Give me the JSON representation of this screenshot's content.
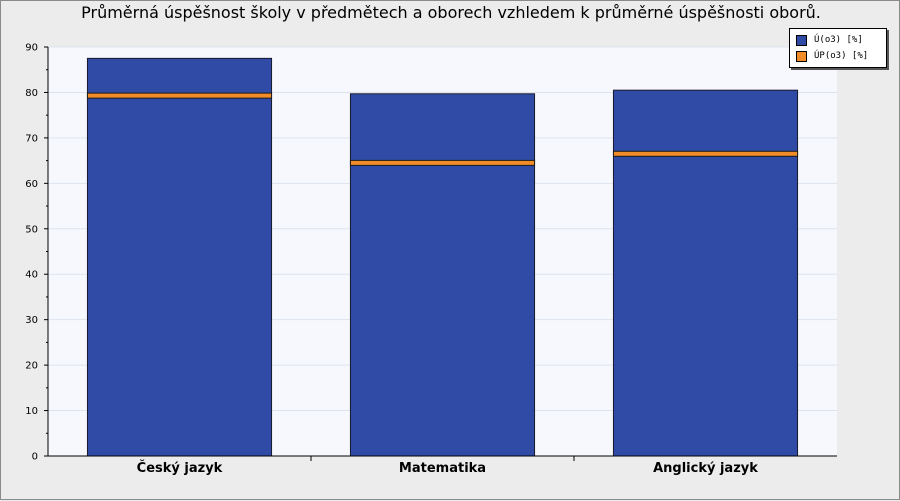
{
  "chart_data": {
    "type": "bar",
    "title": "Průměrná úspěšnost školy v předmětech a oborech vzhledem k průměrné úspěšnosti oborů.",
    "categories": [
      "Český jazyk",
      "Matematika",
      "Anglický jazyk"
    ],
    "series": [
      {
        "name": "Ú(o3) [%]",
        "values": [
          87.5,
          79.7,
          80.5
        ],
        "color": "#2f4ba6",
        "style": "bar"
      },
      {
        "name": "ÚP(o3) [%]",
        "values": [
          79.3,
          64.5,
          66.5
        ],
        "color": "#f28c28",
        "style": "marker-line"
      }
    ],
    "xlabel": "",
    "ylabel": "",
    "ylim": [
      0,
      90
    ],
    "yticks": [
      0,
      10,
      20,
      30,
      40,
      50,
      60,
      70,
      80,
      90
    ],
    "grid": true,
    "legend_position": "top-right"
  }
}
